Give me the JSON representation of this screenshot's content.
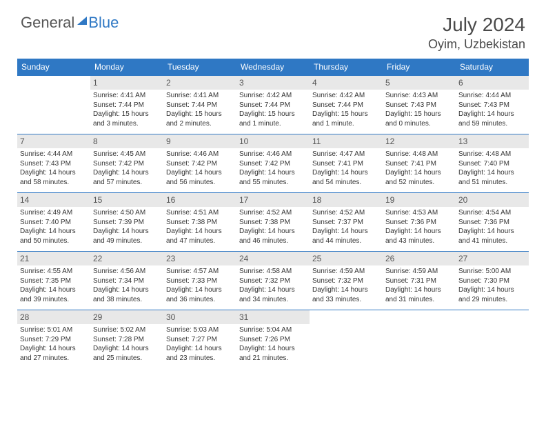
{
  "logo": {
    "part1": "General",
    "part2": "Blue"
  },
  "title": "July 2024",
  "location": "Oyim, Uzbekistan",
  "colors": {
    "header_bg": "#2f78c4",
    "header_fg": "#ffffff",
    "daynum_bg": "#e8e8e8",
    "border": "#2f78c4",
    "text": "#333333"
  },
  "day_headers": [
    "Sunday",
    "Monday",
    "Tuesday",
    "Wednesday",
    "Thursday",
    "Friday",
    "Saturday"
  ],
  "weeks": [
    [
      {
        "n": "",
        "sr": "",
        "ss": "",
        "dl": ""
      },
      {
        "n": "1",
        "sr": "Sunrise: 4:41 AM",
        "ss": "Sunset: 7:44 PM",
        "dl": "Daylight: 15 hours and 3 minutes."
      },
      {
        "n": "2",
        "sr": "Sunrise: 4:41 AM",
        "ss": "Sunset: 7:44 PM",
        "dl": "Daylight: 15 hours and 2 minutes."
      },
      {
        "n": "3",
        "sr": "Sunrise: 4:42 AM",
        "ss": "Sunset: 7:44 PM",
        "dl": "Daylight: 15 hours and 1 minute."
      },
      {
        "n": "4",
        "sr": "Sunrise: 4:42 AM",
        "ss": "Sunset: 7:44 PM",
        "dl": "Daylight: 15 hours and 1 minute."
      },
      {
        "n": "5",
        "sr": "Sunrise: 4:43 AM",
        "ss": "Sunset: 7:43 PM",
        "dl": "Daylight: 15 hours and 0 minutes."
      },
      {
        "n": "6",
        "sr": "Sunrise: 4:44 AM",
        "ss": "Sunset: 7:43 PM",
        "dl": "Daylight: 14 hours and 59 minutes."
      }
    ],
    [
      {
        "n": "7",
        "sr": "Sunrise: 4:44 AM",
        "ss": "Sunset: 7:43 PM",
        "dl": "Daylight: 14 hours and 58 minutes."
      },
      {
        "n": "8",
        "sr": "Sunrise: 4:45 AM",
        "ss": "Sunset: 7:42 PM",
        "dl": "Daylight: 14 hours and 57 minutes."
      },
      {
        "n": "9",
        "sr": "Sunrise: 4:46 AM",
        "ss": "Sunset: 7:42 PM",
        "dl": "Daylight: 14 hours and 56 minutes."
      },
      {
        "n": "10",
        "sr": "Sunrise: 4:46 AM",
        "ss": "Sunset: 7:42 PM",
        "dl": "Daylight: 14 hours and 55 minutes."
      },
      {
        "n": "11",
        "sr": "Sunrise: 4:47 AM",
        "ss": "Sunset: 7:41 PM",
        "dl": "Daylight: 14 hours and 54 minutes."
      },
      {
        "n": "12",
        "sr": "Sunrise: 4:48 AM",
        "ss": "Sunset: 7:41 PM",
        "dl": "Daylight: 14 hours and 52 minutes."
      },
      {
        "n": "13",
        "sr": "Sunrise: 4:48 AM",
        "ss": "Sunset: 7:40 PM",
        "dl": "Daylight: 14 hours and 51 minutes."
      }
    ],
    [
      {
        "n": "14",
        "sr": "Sunrise: 4:49 AM",
        "ss": "Sunset: 7:40 PM",
        "dl": "Daylight: 14 hours and 50 minutes."
      },
      {
        "n": "15",
        "sr": "Sunrise: 4:50 AM",
        "ss": "Sunset: 7:39 PM",
        "dl": "Daylight: 14 hours and 49 minutes."
      },
      {
        "n": "16",
        "sr": "Sunrise: 4:51 AM",
        "ss": "Sunset: 7:38 PM",
        "dl": "Daylight: 14 hours and 47 minutes."
      },
      {
        "n": "17",
        "sr": "Sunrise: 4:52 AM",
        "ss": "Sunset: 7:38 PM",
        "dl": "Daylight: 14 hours and 46 minutes."
      },
      {
        "n": "18",
        "sr": "Sunrise: 4:52 AM",
        "ss": "Sunset: 7:37 PM",
        "dl": "Daylight: 14 hours and 44 minutes."
      },
      {
        "n": "19",
        "sr": "Sunrise: 4:53 AM",
        "ss": "Sunset: 7:36 PM",
        "dl": "Daylight: 14 hours and 43 minutes."
      },
      {
        "n": "20",
        "sr": "Sunrise: 4:54 AM",
        "ss": "Sunset: 7:36 PM",
        "dl": "Daylight: 14 hours and 41 minutes."
      }
    ],
    [
      {
        "n": "21",
        "sr": "Sunrise: 4:55 AM",
        "ss": "Sunset: 7:35 PM",
        "dl": "Daylight: 14 hours and 39 minutes."
      },
      {
        "n": "22",
        "sr": "Sunrise: 4:56 AM",
        "ss": "Sunset: 7:34 PM",
        "dl": "Daylight: 14 hours and 38 minutes."
      },
      {
        "n": "23",
        "sr": "Sunrise: 4:57 AM",
        "ss": "Sunset: 7:33 PM",
        "dl": "Daylight: 14 hours and 36 minutes."
      },
      {
        "n": "24",
        "sr": "Sunrise: 4:58 AM",
        "ss": "Sunset: 7:32 PM",
        "dl": "Daylight: 14 hours and 34 minutes."
      },
      {
        "n": "25",
        "sr": "Sunrise: 4:59 AM",
        "ss": "Sunset: 7:32 PM",
        "dl": "Daylight: 14 hours and 33 minutes."
      },
      {
        "n": "26",
        "sr": "Sunrise: 4:59 AM",
        "ss": "Sunset: 7:31 PM",
        "dl": "Daylight: 14 hours and 31 minutes."
      },
      {
        "n": "27",
        "sr": "Sunrise: 5:00 AM",
        "ss": "Sunset: 7:30 PM",
        "dl": "Daylight: 14 hours and 29 minutes."
      }
    ],
    [
      {
        "n": "28",
        "sr": "Sunrise: 5:01 AM",
        "ss": "Sunset: 7:29 PM",
        "dl": "Daylight: 14 hours and 27 minutes."
      },
      {
        "n": "29",
        "sr": "Sunrise: 5:02 AM",
        "ss": "Sunset: 7:28 PM",
        "dl": "Daylight: 14 hours and 25 minutes."
      },
      {
        "n": "30",
        "sr": "Sunrise: 5:03 AM",
        "ss": "Sunset: 7:27 PM",
        "dl": "Daylight: 14 hours and 23 minutes."
      },
      {
        "n": "31",
        "sr": "Sunrise: 5:04 AM",
        "ss": "Sunset: 7:26 PM",
        "dl": "Daylight: 14 hours and 21 minutes."
      },
      {
        "n": "",
        "sr": "",
        "ss": "",
        "dl": ""
      },
      {
        "n": "",
        "sr": "",
        "ss": "",
        "dl": ""
      },
      {
        "n": "",
        "sr": "",
        "ss": "",
        "dl": ""
      }
    ]
  ]
}
